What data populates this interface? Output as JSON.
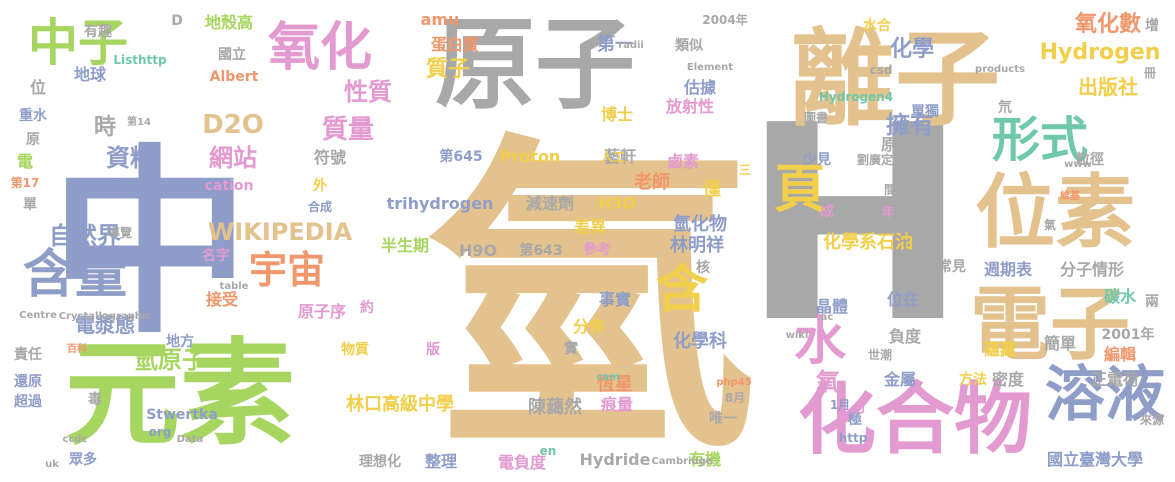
{
  "palette": {
    "tan": "#e3c28e",
    "slate": "#8f9dc9",
    "green": "#a6d65f",
    "pink": "#e39ad0",
    "orange": "#f2966b",
    "teal": "#6fc8a8",
    "gray": "#a8a8a8",
    "yellow": "#f2cf4a"
  },
  "words": [
    {
      "text": "氫",
      "color": "#e3c28e"
    },
    {
      "text": "中",
      "color": "#8f9dc9"
    },
    {
      "text": "H",
      "color": "#a8a8a8"
    },
    {
      "text": "離子",
      "color": "#e3c28e"
    },
    {
      "text": "元素",
      "color": "#a6d65f"
    },
    {
      "text": "原子",
      "color": "#a8a8a8"
    },
    {
      "text": "化合物",
      "color": "#e39ad0"
    },
    {
      "text": "位素",
      "color": "#e3c28e"
    },
    {
      "text": "電子",
      "color": "#e3c28e"
    },
    {
      "text": "含量",
      "color": "#8f9dc9"
    },
    {
      "text": "溶液",
      "color": "#8f9dc9"
    },
    {
      "text": "中子",
      "color": "#a6d65f"
    },
    {
      "text": "氧化",
      "color": "#e39ad0"
    },
    {
      "text": "形式",
      "color": "#6fc8a8"
    },
    {
      "text": "頁",
      "color": "#f2cf4a"
    },
    {
      "text": "宇宙",
      "color": "#f2966b"
    },
    {
      "text": "水",
      "color": "#e39ad0"
    },
    {
      "text": "含",
      "color": "#f2cf4a"
    },
    {
      "text": "Hydrogen",
      "color": "#f2cf4a"
    },
    {
      "text": "氧化數",
      "color": "#f2966b"
    },
    {
      "text": "WIKIPEDIA",
      "color": "#e3c28e"
    },
    {
      "text": "D2O",
      "color": "#e3c28e"
    },
    {
      "text": "網站",
      "color": "#e39ad0"
    },
    {
      "text": "資料",
      "color": "#8f9dc9"
    },
    {
      "text": "時",
      "color": "#a8a8a8"
    },
    {
      "text": "自然界",
      "color": "#8f9dc9"
    },
    {
      "text": "性質",
      "color": "#e39ad0"
    },
    {
      "text": "質量",
      "color": "#e39ad0"
    },
    {
      "text": "質子",
      "color": "#f2cf4a"
    },
    {
      "text": "化學",
      "color": "#8f9dc9"
    },
    {
      "text": "擁有",
      "color": "#8f9dc9"
    },
    {
      "text": "出版社",
      "color": "#f2cf4a"
    },
    {
      "text": "電漿態",
      "color": "#8f9dc9"
    },
    {
      "text": "氫原子",
      "color": "#a6d65f"
    },
    {
      "text": "氧",
      "color": "#e39ad0"
    },
    {
      "text": "林口高級中學",
      "color": "#f2cf4a"
    },
    {
      "text": "陳藹然",
      "color": "#a8a8a8"
    },
    {
      "text": "化學系石油",
      "color": "#f2cf4a"
    },
    {
      "text": "林明祥",
      "color": "#8f9dc9"
    },
    {
      "text": "氫化物",
      "color": "#8f9dc9"
    },
    {
      "text": "trihydrogen",
      "color": "#8f9dc9"
    },
    {
      "text": "減速劑",
      "color": "#a8a8a8"
    },
    {
      "text": "H3O",
      "color": "#f2cf4a"
    },
    {
      "text": "Proton",
      "color": "#f2cf4a"
    },
    {
      "text": "藝軒",
      "color": "#a8a8a8"
    },
    {
      "text": "第645",
      "color": "#8f9dc9"
    },
    {
      "text": "鹵素",
      "color": "#e39ad0"
    },
    {
      "text": "amu",
      "color": "#f2966b"
    },
    {
      "text": "蛋白質",
      "color": "#f2966b"
    },
    {
      "text": "第一",
      "color": "#8f9dc9"
    },
    {
      "text": "博士",
      "color": "#f2cf4a"
    },
    {
      "text": "估據",
      "color": "#8f9dc9"
    },
    {
      "text": "放射性",
      "color": "#e39ad0"
    },
    {
      "text": "原生",
      "color": "#a8a8a8"
    },
    {
      "text": "符號",
      "color": "#a8a8a8"
    },
    {
      "text": "週期表",
      "color": "#8f9dc9"
    },
    {
      "text": "分子情形",
      "color": "#a8a8a8"
    },
    {
      "text": "碳水",
      "color": "#6fc8a8"
    },
    {
      "text": "晶體",
      "color": "#8f9dc9"
    },
    {
      "text": "位在",
      "color": "#8f9dc9"
    },
    {
      "text": "負度",
      "color": "#a8a8a8"
    },
    {
      "text": "金屬",
      "color": "#8f9dc9"
    },
    {
      "text": "恆星",
      "color": "#f2966b"
    },
    {
      "text": "痕量",
      "color": "#e39ad0"
    },
    {
      "text": "化學科",
      "color": "#8f9dc9"
    },
    {
      "text": "分佈",
      "color": "#f2cf4a"
    },
    {
      "text": "事實",
      "color": "#8f9dc9"
    },
    {
      "text": "原子序",
      "color": "#e39ad0"
    },
    {
      "text": "接受",
      "color": "#f2966b"
    },
    {
      "text": "名字",
      "color": "#e39ad0"
    },
    {
      "text": "H9O",
      "color": "#a8a8a8"
    },
    {
      "text": "半生期",
      "color": "#a6d65f"
    },
    {
      "text": "第643",
      "color": "#a8a8a8"
    },
    {
      "text": "參考",
      "color": "#e39ad0"
    },
    {
      "text": "差異",
      "color": "#f2cf4a"
    },
    {
      "text": "老師",
      "color": "#f2966b"
    },
    {
      "text": "僅",
      "color": "#f2cf4a"
    },
    {
      "text": "電負度",
      "color": "#e39ad0"
    },
    {
      "text": "Hydride",
      "color": "#a8a8a8"
    },
    {
      "text": "有機",
      "color": "#a6d65f"
    },
    {
      "text": "整理",
      "color": "#8f9dc9"
    },
    {
      "text": "理想化",
      "color": "#a8a8a8"
    },
    {
      "text": "國立臺灣大學",
      "color": "#8f9dc9"
    },
    {
      "text": "蘊藏",
      "color": "#f2cf4a"
    },
    {
      "text": "密度",
      "color": "#a8a8a8"
    },
    {
      "text": "正電荷",
      "color": "#a8a8a8"
    },
    {
      "text": "簡單",
      "color": "#a8a8a8"
    },
    {
      "text": "編輯",
      "color": "#f2966b"
    },
    {
      "text": "2001年",
      "color": "#a8a8a8"
    },
    {
      "text": "方法",
      "color": "#f2cf4a"
    },
    {
      "text": "地殼高",
      "color": "#a6d65f"
    },
    {
      "text": "國立",
      "color": "#a8a8a8"
    },
    {
      "text": "Albert",
      "color": "#f2966b"
    },
    {
      "text": "地球",
      "color": "#8f9dc9"
    },
    {
      "text": "有趣",
      "color": "#a8a8a8"
    },
    {
      "text": "位",
      "color": "#a8a8a8"
    },
    {
      "text": "重水",
      "color": "#8f9dc9"
    },
    {
      "text": "原",
      "color": "#a8a8a8"
    },
    {
      "text": "電",
      "color": "#a6d65f"
    },
    {
      "text": "單",
      "color": "#a8a8a8"
    },
    {
      "text": "責任",
      "color": "#a8a8a8"
    },
    {
      "text": "還原",
      "color": "#8f9dc9"
    },
    {
      "text": "超過",
      "color": "#8f9dc9"
    },
    {
      "text": "眾多",
      "color": "#8f9dc9"
    },
    {
      "text": "毒",
      "color": "#a8a8a8"
    },
    {
      "text": "地方",
      "color": "#8f9dc9"
    },
    {
      "text": "物質",
      "color": "#f2cf4a"
    },
    {
      "text": "版",
      "color": "#e39ad0"
    },
    {
      "text": "實",
      "color": "#a8a8a8"
    },
    {
      "text": "Stwertka",
      "color": "#8f9dc9"
    },
    {
      "text": "org",
      "color": "#8f9dc9"
    },
    {
      "text": "第14",
      "color": "#a8a8a8"
    },
    {
      "text": "曾國輝",
      "color": "#8f9dc9"
    },
    {
      "text": "cation",
      "color": "#e39ad0"
    },
    {
      "text": "外",
      "color": "#f2cf4a"
    },
    {
      "text": "合成",
      "color": "#8f9dc9"
    },
    {
      "text": "成",
      "color": "#e39ad0"
    },
    {
      "text": "年",
      "color": "#e39ad0"
    },
    {
      "text": "間",
      "color": "#a8a8a8"
    },
    {
      "text": "少見",
      "color": "#8f9dc9"
    },
    {
      "text": "劉廣定",
      "color": "#a8a8a8"
    },
    {
      "text": "人工",
      "color": "#f2cf4a"
    },
    {
      "text": "單獨",
      "color": "#8f9dc9"
    },
    {
      "text": "粒徑",
      "color": "#a8a8a8"
    },
    {
      "text": "氘",
      "color": "#a8a8a8"
    },
    {
      "text": "圖書",
      "color": "#a8a8a8"
    },
    {
      "text": "水合",
      "color": "#f2cf4a"
    },
    {
      "text": "類似",
      "color": "#a8a8a8"
    },
    {
      "text": "2004年",
      "color": "#a8a8a8"
    },
    {
      "text": "Hydrogen4",
      "color": "#6fc8a8"
    },
    {
      "text": "常見",
      "color": "#a8a8a8"
    },
    {
      "text": "兩",
      "color": "#a8a8a8"
    },
    {
      "text": "增",
      "color": "#a8a8a8"
    },
    {
      "text": "氣",
      "color": "#a8a8a8"
    },
    {
      "text": "導覽",
      "color": "#a8a8a8"
    },
    {
      "text": "第17",
      "color": "#f2966b"
    },
    {
      "text": "唯一",
      "color": "#a8a8a8"
    },
    {
      "text": "8月",
      "color": "#a8a8a8"
    },
    {
      "text": "1月",
      "color": "#8f9dc9"
    },
    {
      "text": "極",
      "color": "#8f9dc9"
    },
    {
      "text": "世潮",
      "color": "#a8a8a8"
    },
    {
      "text": "http",
      "color": "#8f9dc9"
    },
    {
      "text": "en",
      "color": "#6fc8a8"
    },
    {
      "text": "Cambridge",
      "color": "#a8a8a8"
    },
    {
      "text": "wiki",
      "color": "#a8a8a8"
    },
    {
      "text": "php45",
      "color": "#f2966b"
    },
    {
      "text": "cam",
      "color": "#6fc8a8"
    },
    {
      "text": "約",
      "color": "#e39ad0"
    },
    {
      "text": "核",
      "color": "#a8a8a8"
    },
    {
      "text": "Centre",
      "color": "#a8a8a8"
    },
    {
      "text": "Crystallographic",
      "color": "#a8a8a8"
    },
    {
      "text": "table",
      "color": "#a8a8a8"
    },
    {
      "text": "Data",
      "color": "#a8a8a8"
    },
    {
      "text": "ccdc",
      "color": "#a8a8a8"
    },
    {
      "text": "uk",
      "color": "#a8a8a8"
    },
    {
      "text": "products",
      "color": "#a8a8a8"
    },
    {
      "text": "Element",
      "color": "#a8a8a8"
    },
    {
      "text": "radii",
      "color": "#a8a8a8"
    },
    {
      "text": "Listhttp",
      "color": "#6fc8a8"
    },
    {
      "text": "www",
      "color": "#a8a8a8"
    },
    {
      "text": "csd",
      "color": "#a8a8a8"
    },
    {
      "text": "ac",
      "color": "#a8a8a8"
    },
    {
      "text": "D",
      "color": "#a8a8a8"
    },
    {
      "text": "來源",
      "color": "#a8a8a8"
    },
    {
      "text": "百科",
      "color": "#f2966b"
    },
    {
      "text": "維基",
      "color": "#f2966b"
    },
    {
      "text": "冊",
      "color": "#a8a8a8"
    },
    {
      "text": "三",
      "color": "#f2cf4a"
    },
    {
      "text": "訂",
      "color": "#e39ad0"
    },
    {
      "text": "T",
      "color": "#a8a8a8"
    }
  ]
}
